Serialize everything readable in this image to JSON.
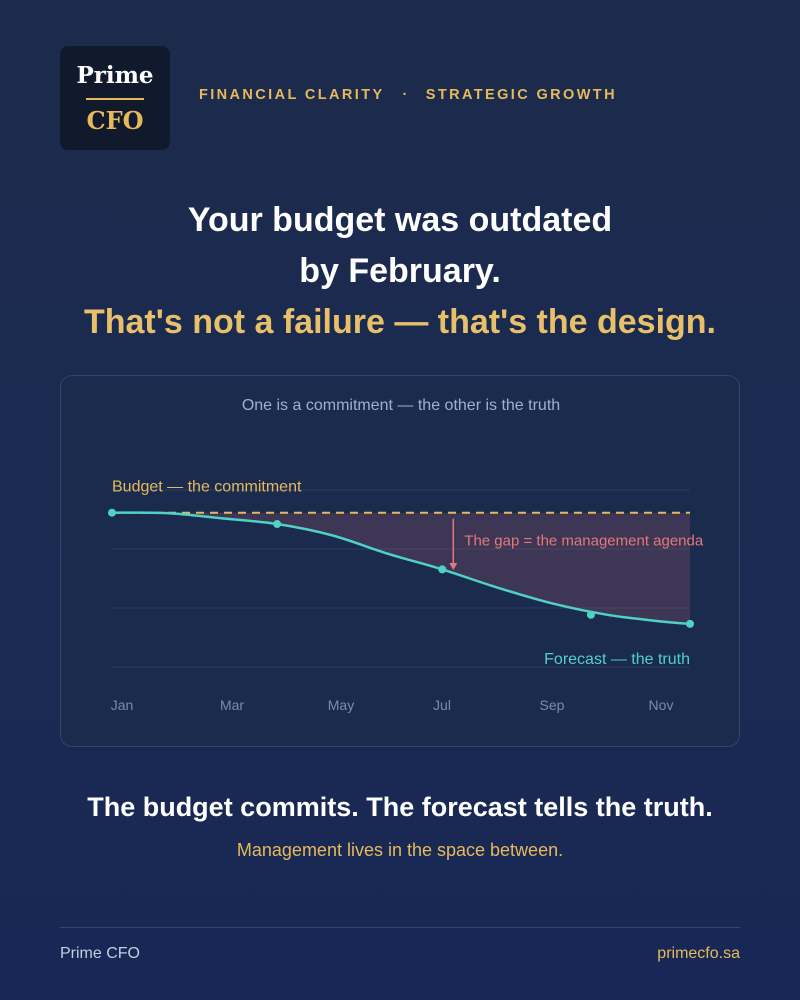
{
  "brand": {
    "logo_top": "Prime",
    "logo_bottom": "CFO"
  },
  "tagline": {
    "left": "FINANCIAL CLARITY",
    "separator": "·",
    "right": "STRATEGIC GROWTH"
  },
  "headline": {
    "line1": "Your budget was outdated",
    "line2": "by February.",
    "line3": "That's not a failure — that's the design."
  },
  "chart_data": {
    "type": "line",
    "title": "One is a commitment  —  the other is the truth",
    "categories": [
      "Jan",
      "Mar",
      "May",
      "Jul",
      "Sep",
      "Nov"
    ],
    "x_range": [
      1,
      11.5
    ],
    "series": [
      {
        "name": "Budget — the commitment",
        "style": "dashed",
        "color": "#e6b95c",
        "x": [
          1,
          11.5
        ],
        "y": [
          100,
          100
        ]
      },
      {
        "name": "Forecast — the truth",
        "style": "solid",
        "color": "#4fd1c5",
        "x": [
          1,
          2,
          3,
          4,
          5,
          6,
          7,
          8,
          9,
          10,
          11,
          11.5
        ],
        "y": [
          100,
          99.8,
          97.5,
          95,
          90,
          82,
          75,
          67,
          60,
          55,
          52,
          51
        ],
        "markers": [
          [
            1,
            100
          ],
          [
            4,
            95
          ],
          [
            7,
            75
          ],
          [
            9.7,
            55
          ],
          [
            11.5,
            51
          ]
        ]
      }
    ],
    "annotations": [
      {
        "text": "The gap = the management agenda",
        "color": "#e5787a",
        "arrow_x": 7.2
      }
    ],
    "ylim": [
      32,
      110
    ],
    "grid": true
  },
  "closing": {
    "statement": "The budget commits. The forecast tells the truth.",
    "note": "Management lives in the space between."
  },
  "footer": {
    "left": "Prime CFO",
    "right": "primecfo.sa"
  },
  "colors": {
    "accent": "#e6b95c",
    "forecast": "#4fd1c5",
    "gap": "#e5787a",
    "background": "#1c2b4b"
  }
}
